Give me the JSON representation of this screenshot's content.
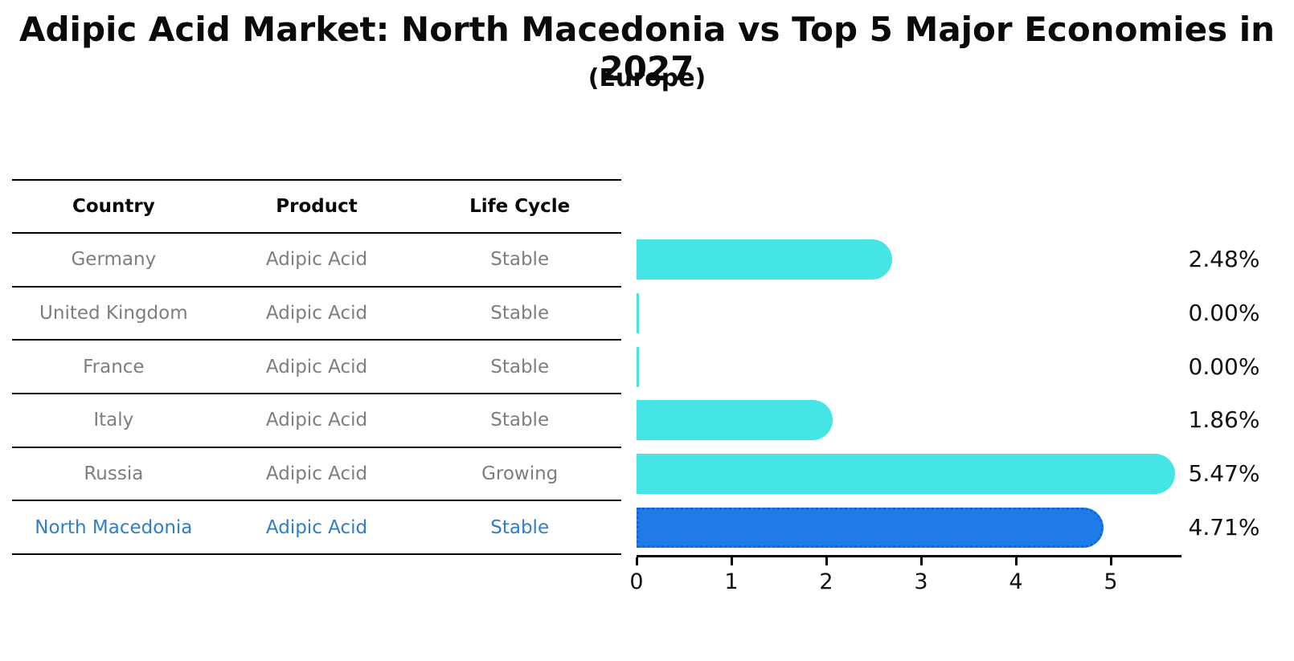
{
  "title": "Adipic Acid Market: North Macedonia vs Top 5 Major Economies in 2027",
  "subtitle": "(Europe)",
  "colors": {
    "bar_cyan": "#45E5E6",
    "bar_blue": "#1F7BE8",
    "highlight_border_blue": "#1565D8",
    "highlight_text_blue": "#2E7EC9",
    "table_text_gray": "#7E7E7E",
    "line_black": "#000000"
  },
  "table": {
    "headers": [
      "Country",
      "Product",
      "Life Cycle"
    ],
    "rows": [
      {
        "country": "Germany",
        "product": "Adipic Acid",
        "life_cycle": "Stable",
        "highlight": false
      },
      {
        "country": "United Kingdom",
        "product": "Adipic Acid",
        "life_cycle": "Stable",
        "highlight": false
      },
      {
        "country": "France",
        "product": "Adipic Acid",
        "life_cycle": "Stable",
        "highlight": false
      },
      {
        "country": "Italy",
        "product": "Adipic Acid",
        "life_cycle": "Stable",
        "highlight": false
      },
      {
        "country": "Russia",
        "product": "Adipic Acid",
        "life_cycle": "Growing",
        "highlight": false
      },
      {
        "country": "North Macedonia",
        "product": "Adipic Acid",
        "life_cycle": "Stable",
        "highlight": true
      }
    ]
  },
  "chart_data": {
    "type": "bar",
    "orientation": "horizontal",
    "title": "Adipic Acid Market: North Macedonia vs Top 5 Major Economies in 2027",
    "subtitle": "(Europe)",
    "categories": [
      "Germany",
      "United Kingdom",
      "France",
      "Italy",
      "Russia",
      "North Macedonia"
    ],
    "values": [
      2.48,
      0.0,
      0.0,
      1.86,
      5.47,
      4.71
    ],
    "value_labels": [
      "2.48%",
      "0.00%",
      "0.00%",
      "1.86%",
      "5.47%",
      "4.71%"
    ],
    "xlabel": "",
    "ylabel": "",
    "xticks": [
      0,
      1,
      2,
      3,
      4,
      5
    ],
    "xlim": [
      0,
      5.7
    ],
    "grid": false,
    "legend": false,
    "highlight_index": 5,
    "bar_color": "#45E5E6",
    "highlight_color": "#1F7BE8"
  }
}
